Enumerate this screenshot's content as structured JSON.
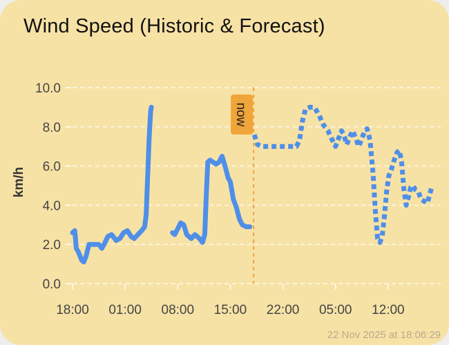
{
  "card": {
    "title": "Wind Speed (Historic & Forecast)",
    "timestamp": "22 Nov 2025 at 18:06:29"
  },
  "colors": {
    "card_bg": "#f7e2a6",
    "line": "#4f8fe8",
    "now_marker": "#f0a53a"
  },
  "chart_data": {
    "type": "line",
    "title": "Wind Speed (Historic & Forecast)",
    "xlabel": "",
    "ylabel": "km/h",
    "ylim": [
      0,
      10
    ],
    "yticks": [
      "0.0",
      "2.0",
      "4.0",
      "6.0",
      "8.0",
      "10.0"
    ],
    "xticks": [
      "18:00",
      "01:00",
      "08:00",
      "15:00",
      "22:00",
      "05:00",
      "12:00"
    ],
    "x_tick_hours": [
      0,
      7,
      14,
      21,
      28,
      35,
      42
    ],
    "xlim_hours": [
      0,
      49
    ],
    "grid": "horizontal",
    "now_label": "now",
    "now_hour": 24.1,
    "series": [
      {
        "style": "solid",
        "segments": [
          [
            [
              0,
              2.6
            ],
            [
              0.3,
              2.7
            ],
            [
              0.5,
              1.8
            ],
            [
              0.8,
              1.6
            ],
            [
              1.2,
              1.2
            ],
            [
              1.5,
              1.1
            ],
            [
              1.8,
              1.4
            ],
            [
              2.2,
              2.0
            ],
            [
              2.8,
              2.0
            ],
            [
              3.5,
              2.0
            ],
            [
              3.9,
              1.8
            ],
            [
              4.2,
              2.0
            ],
            [
              4.7,
              2.4
            ],
            [
              5.2,
              2.5
            ],
            [
              5.8,
              2.2
            ],
            [
              6.3,
              2.3
            ],
            [
              6.8,
              2.6
            ],
            [
              7.3,
              2.7
            ],
            [
              7.8,
              2.4
            ],
            [
              8.2,
              2.3
            ],
            [
              8.7,
              2.5
            ],
            [
              9.2,
              2.7
            ],
            [
              9.6,
              2.9
            ],
            [
              9.8,
              3.5
            ],
            [
              10.0,
              5.5
            ],
            [
              10.2,
              7.5
            ],
            [
              10.4,
              8.8
            ],
            [
              10.5,
              9.0
            ]
          ],
          [
            [
              13.3,
              2.6
            ],
            [
              13.6,
              2.5
            ],
            [
              14.0,
              2.8
            ],
            [
              14.4,
              3.1
            ],
            [
              14.8,
              3.0
            ],
            [
              15.2,
              2.5
            ],
            [
              15.8,
              2.3
            ],
            [
              16.3,
              2.5
            ],
            [
              16.9,
              2.3
            ],
            [
              17.3,
              2.1
            ],
            [
              17.6,
              2.5
            ],
            [
              17.8,
              4.5
            ],
            [
              18.0,
              6.2
            ],
            [
              18.3,
              6.3
            ],
            [
              18.7,
              6.2
            ],
            [
              19.1,
              6.1
            ],
            [
              19.5,
              6.2
            ],
            [
              19.9,
              6.5
            ],
            [
              20.3,
              6.0
            ],
            [
              20.7,
              5.4
            ],
            [
              21.0,
              5.2
            ],
            [
              21.4,
              4.3
            ],
            [
              21.8,
              3.9
            ],
            [
              22.2,
              3.3
            ],
            [
              22.6,
              3.0
            ],
            [
              23.1,
              2.9
            ],
            [
              23.6,
              2.9
            ]
          ]
        ]
      },
      {
        "style": "dotted",
        "segments": [
          [
            [
              24.2,
              7.6
            ],
            [
              24.6,
              7.1
            ],
            [
              25.2,
              7.0
            ],
            [
              26.0,
              7.0
            ],
            [
              27.0,
              7.0
            ],
            [
              28.0,
              7.0
            ],
            [
              29.0,
              7.0
            ],
            [
              29.8,
              7.0
            ],
            [
              30.2,
              7.3
            ],
            [
              30.6,
              8.3
            ],
            [
              31.0,
              8.9
            ],
            [
              31.6,
              9.0
            ],
            [
              32.2,
              9.0
            ],
            [
              32.8,
              8.6
            ],
            [
              33.4,
              8.1
            ],
            [
              34.0,
              7.8
            ],
            [
              34.6,
              7.3
            ],
            [
              35.0,
              7.0
            ],
            [
              35.4,
              7.4
            ],
            [
              35.8,
              7.8
            ],
            [
              36.1,
              7.6
            ],
            [
              36.5,
              7.1
            ],
            [
              36.9,
              7.5
            ],
            [
              37.3,
              7.8
            ],
            [
              37.7,
              7.4
            ],
            [
              38.1,
              7.0
            ],
            [
              38.5,
              7.4
            ],
            [
              38.9,
              7.8
            ],
            [
              39.2,
              7.9
            ],
            [
              39.6,
              7.3
            ],
            [
              40.0,
              5.6
            ],
            [
              40.3,
              3.7
            ],
            [
              40.6,
              2.3
            ],
            [
              40.9,
              2.1
            ],
            [
              41.2,
              2.4
            ],
            [
              41.5,
              3.4
            ],
            [
              41.8,
              4.7
            ],
            [
              42.1,
              5.5
            ],
            [
              42.5,
              5.9
            ],
            [
              42.8,
              6.3
            ],
            [
              43.2,
              6.7
            ],
            [
              43.5,
              6.8
            ],
            [
              43.8,
              6.2
            ],
            [
              44.1,
              4.8
            ],
            [
              44.4,
              4.0
            ],
            [
              44.7,
              4.4
            ],
            [
              45.0,
              4.9
            ],
            [
              45.3,
              5.0
            ],
            [
              45.6,
              4.8
            ],
            [
              46.0,
              4.7
            ],
            [
              46.4,
              4.3
            ],
            [
              46.8,
              4.2
            ],
            [
              47.2,
              4.1
            ],
            [
              47.5,
              4.5
            ],
            [
              47.8,
              4.9
            ]
          ]
        ]
      }
    ]
  }
}
